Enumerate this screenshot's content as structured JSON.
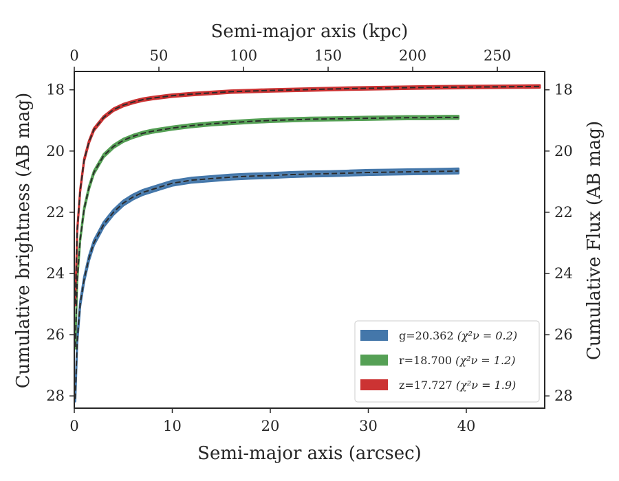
{
  "chart_data": {
    "type": "line",
    "xlabel": "Semi-major axis (arcsec)",
    "x2label": "Semi-major axis (kpc)",
    "ylabel": "Cumulative brightness (AB mag)",
    "y2label": "Cumulative Flux (AB mag)",
    "xlim": [
      0,
      48
    ],
    "x2lim": [
      0,
      278
    ],
    "ylim": [
      28.4,
      17.4
    ],
    "y_inverted": true,
    "x_ticks": [
      "0",
      "10",
      "20",
      "30",
      "40"
    ],
    "x2_ticks": [
      "0",
      "50",
      "100",
      "150",
      "200",
      "250"
    ],
    "y_ticks": [
      "18",
      "20",
      "22",
      "24",
      "26",
      "28"
    ],
    "legend_position": "lower-right",
    "grid": false,
    "series": [
      {
        "name": "g=20.362",
        "chi": "χ²ν = 0.2",
        "color": "#4477aa",
        "x": [
          0.1,
          0.3,
          0.6,
          1,
          1.5,
          2,
          3,
          4,
          5,
          6,
          7,
          8,
          9,
          10,
          12,
          14,
          16,
          18,
          20,
          22,
          24,
          26,
          28,
          30,
          32,
          34,
          36,
          38,
          39.2
        ],
        "y": [
          28.1,
          26.2,
          25.0,
          24.2,
          23.5,
          23.0,
          22.4,
          22.0,
          21.7,
          21.5,
          21.35,
          21.25,
          21.15,
          21.05,
          20.95,
          20.9,
          20.85,
          20.82,
          20.8,
          20.77,
          20.75,
          20.74,
          20.72,
          20.7,
          20.69,
          20.68,
          20.67,
          20.66,
          20.65
        ],
        "band_halfwidth": 0.08
      },
      {
        "name": "r=18.700",
        "chi": "χ²ν = 1.2",
        "color": "#55a055",
        "x": [
          0.1,
          0.3,
          0.6,
          1,
          1.5,
          2,
          3,
          4,
          5,
          6,
          7,
          8,
          10,
          12,
          14,
          16,
          18,
          20,
          22,
          24,
          26,
          28,
          30,
          32,
          34,
          36,
          38,
          39.2
        ],
        "y": [
          26.4,
          24.2,
          22.9,
          21.9,
          21.2,
          20.7,
          20.15,
          19.85,
          19.65,
          19.52,
          19.42,
          19.35,
          19.25,
          19.17,
          19.11,
          19.07,
          19.03,
          19.0,
          18.98,
          18.96,
          18.95,
          18.94,
          18.93,
          18.92,
          18.91,
          18.91,
          18.9,
          18.9
        ],
        "band_halfwidth": 0.05
      },
      {
        "name": "z=17.727",
        "chi": "χ²ν = 1.9",
        "color": "#cc3333",
        "x": [
          0.1,
          0.3,
          0.6,
          1,
          1.5,
          2,
          3,
          4,
          5,
          6,
          7,
          8,
          10,
          12,
          14,
          16,
          18,
          20,
          24,
          28,
          32,
          36,
          40,
          44,
          47.5
        ],
        "y": [
          25.0,
          22.6,
          21.3,
          20.3,
          19.7,
          19.3,
          18.9,
          18.65,
          18.5,
          18.4,
          18.32,
          18.27,
          18.19,
          18.14,
          18.1,
          18.06,
          18.04,
          18.02,
          17.99,
          17.96,
          17.94,
          17.92,
          17.91,
          17.9,
          17.89
        ],
        "band_halfwidth": 0.04
      }
    ]
  }
}
